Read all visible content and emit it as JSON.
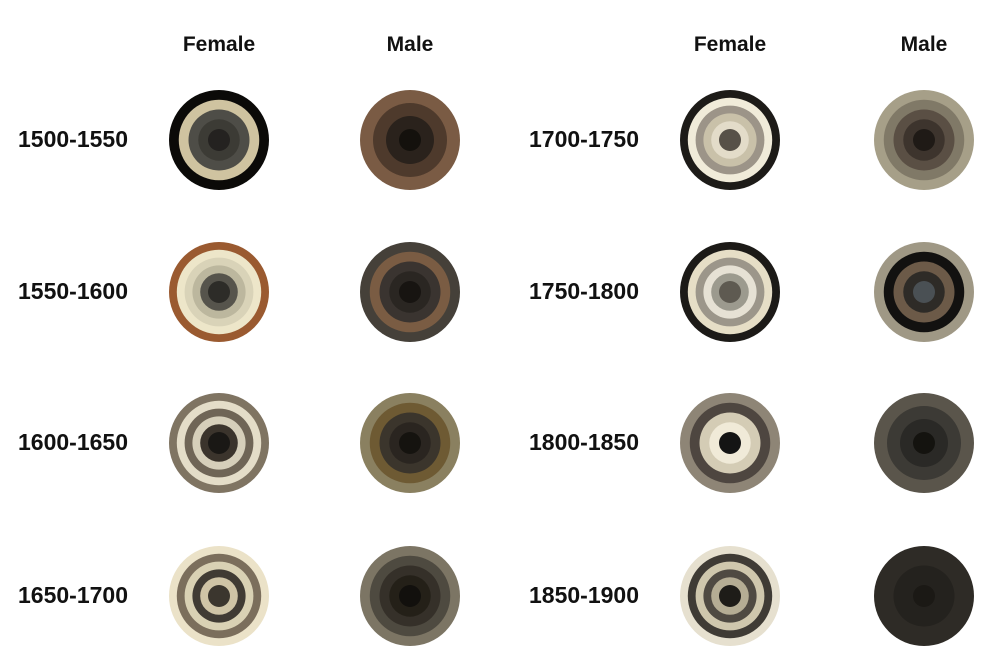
{
  "headers": {
    "left_female": "Female",
    "left_male": "Male",
    "right_female": "Female",
    "right_male": "Male"
  },
  "rows": [
    {
      "period": "1500-1550",
      "female": [
        "#0b0a08",
        "#cfc3a0",
        "#4e4d47",
        "#3c3b35",
        "#242220"
      ],
      "male": [
        "#7a5b44",
        "#4e3a2c",
        "#2a221c",
        "#14110d"
      ]
    },
    {
      "period": "1550-1600",
      "female": [
        "#9a5a30",
        "#ede6c9",
        "#d9d3b8",
        "#bcb79e",
        "#56544c",
        "#2d2c28"
      ],
      "male": [
        "#454039",
        "#7a5c43",
        "#3a3430",
        "#2a2622",
        "#171411"
      ]
    },
    {
      "period": "1600-1650",
      "female": [
        "#7f7462",
        "#e4ddc8",
        "#6f6556",
        "#d6cfba",
        "#3b342c",
        "#1a1815"
      ],
      "male": [
        "#8a8060",
        "#6e5a33",
        "#3b352c",
        "#2a2520",
        "#15130f"
      ]
    },
    {
      "period": "1650-1700",
      "female": [
        "#ebe2c8",
        "#7b6e5c",
        "#d9d1b4",
        "#403b34",
        "#cfc4a6",
        "#3b362e"
      ],
      "male": [
        "#7c7564",
        "#4e4a40",
        "#353029",
        "#242018",
        "#12100d"
      ]
    },
    {
      "period": "1700-1750",
      "female": [
        "#1d1b18",
        "#f0ebd9",
        "#9c9488",
        "#c9c1a9",
        "#e3dcc9",
        "#575148"
      ],
      "male": [
        "#a69f88",
        "#807967",
        "#5a4f44",
        "#3d342d",
        "#1f1a16"
      ]
    },
    {
      "period": "1750-1800",
      "female": [
        "#1c1a17",
        "#e6dec6",
        "#9c968a",
        "#e6e1d4",
        "#9c9a8e",
        "#5e5a51"
      ],
      "male": [
        "#9f9885",
        "#121110",
        "#6c5a48",
        "#2e2b27",
        "#4a5054"
      ],
      "male_outer_gap": "#4a4540"
    },
    {
      "period": "1800-1850",
      "female": [
        "#8e8576",
        "#4e4640",
        "#d4ccb5",
        "#f0ead8",
        "#141414"
      ],
      "male": [
        "#5a554b",
        "#3c3a35",
        "#2a2926",
        "#14130f"
      ]
    },
    {
      "period": "1850-1900",
      "female": [
        "#e6e0cf",
        "#3f3b35",
        "#cfc7ad",
        "#4f4a42",
        "#b5ad94",
        "#1e1c18"
      ],
      "male": [
        "#2e2b26",
        "#24221e",
        "#1b1915"
      ]
    }
  ]
}
